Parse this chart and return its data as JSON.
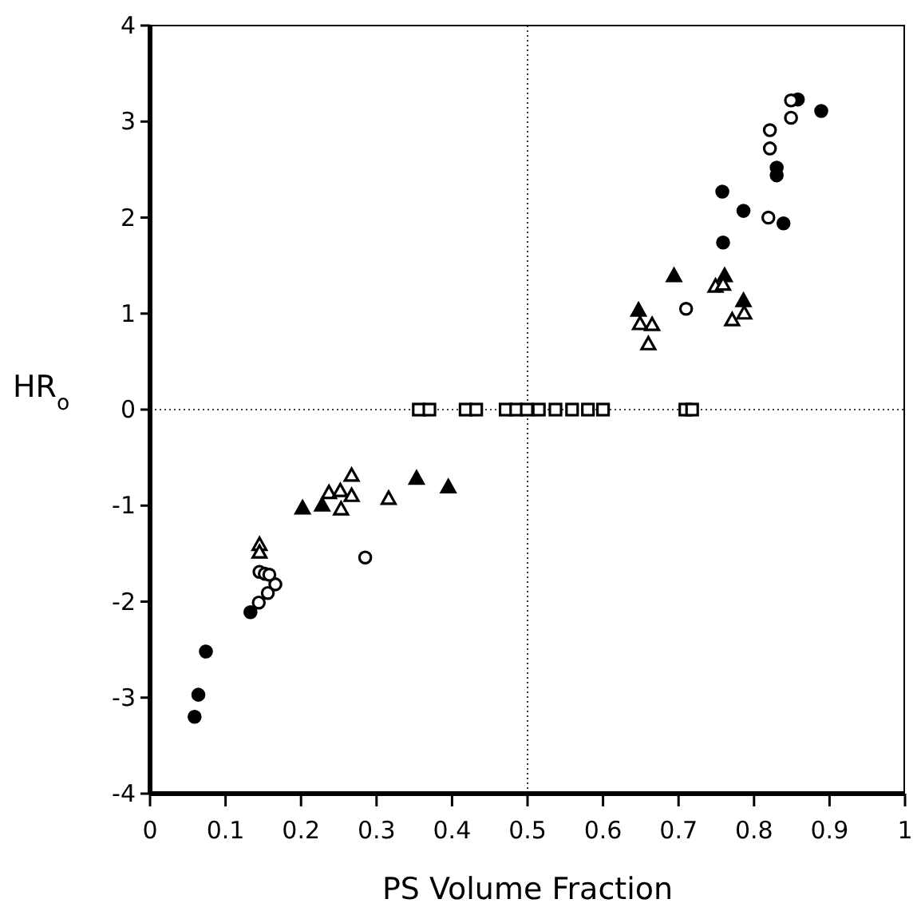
{
  "chart_data": {
    "type": "scatter",
    "xlabel": "PS Volume Fraction",
    "ylabel": "HR$_{o}$",
    "xlim": [
      0,
      1
    ],
    "ylim": [
      -4,
      4
    ],
    "xticks": [
      0,
      0.1,
      0.2,
      0.3,
      0.4,
      0.5,
      0.6,
      0.7,
      0.8,
      0.9,
      1
    ],
    "yticks": [
      -4,
      -3,
      -2,
      -1,
      0,
      1,
      2,
      3,
      4
    ],
    "grid": false,
    "ref_lines": [
      {
        "axis": "x",
        "value": 0.5,
        "line_style": "dotted",
        "color": "#000000"
      },
      {
        "axis": "y",
        "value": 0,
        "line_style": "dotted",
        "color": "#000000"
      }
    ],
    "series": [
      {
        "marker": "circle",
        "color": "#000000",
        "x": [
          0.059,
          0.064,
          0.074,
          0.133,
          0.858,
          0.889,
          0.83,
          0.83,
          0.758,
          0.786,
          0.839,
          0.759
        ],
        "values": [
          -3.2,
          -2.97,
          -2.52,
          -2.11,
          3.23,
          3.11,
          2.52,
          2.44,
          2.27,
          2.07,
          1.94,
          1.74
        ]
      },
      {
        "marker": "circle",
        "color": "#ffffff",
        "x": [
          0.144,
          0.156,
          0.166,
          0.145,
          0.152,
          0.158,
          0.285,
          0.849,
          0.849,
          0.821,
          0.821,
          0.819,
          0.71
        ],
        "values": [
          -2.01,
          -1.91,
          -1.82,
          -1.69,
          -1.71,
          -1.72,
          -1.54,
          3.22,
          3.04,
          2.91,
          2.72,
          2.0,
          1.05
        ]
      },
      {
        "marker": "triangle",
        "color": "#000000",
        "x": [
          0.202,
          0.228,
          0.353,
          0.395,
          0.694,
          0.761,
          0.786,
          0.647
        ],
        "values": [
          -1.03,
          -1.0,
          -0.72,
          -0.81,
          1.39,
          1.39,
          1.13,
          1.03
        ]
      },
      {
        "marker": "triangle",
        "color": "#ffffff",
        "x": [
          0.145,
          0.145,
          0.237,
          0.252,
          0.253,
          0.267,
          0.267,
          0.316,
          0.749,
          0.759,
          0.771,
          0.787,
          0.649,
          0.665,
          0.66
        ],
        "values": [
          -1.41,
          -1.49,
          -0.87,
          -0.85,
          -1.04,
          -0.9,
          -0.69,
          -0.93,
          1.28,
          1.3,
          0.93,
          1.0,
          0.89,
          0.88,
          0.68
        ]
      },
      {
        "marker": "square",
        "color": "#ffffff",
        "x": [
          0.356,
          0.37,
          0.418,
          0.432,
          0.471,
          0.485,
          0.499,
          0.515,
          0.537,
          0.559,
          0.58,
          0.6,
          0.709,
          0.718
        ],
        "values": [
          0,
          0,
          0,
          0,
          0,
          0,
          0,
          0,
          0,
          0,
          0,
          0,
          0,
          0
        ]
      }
    ]
  }
}
